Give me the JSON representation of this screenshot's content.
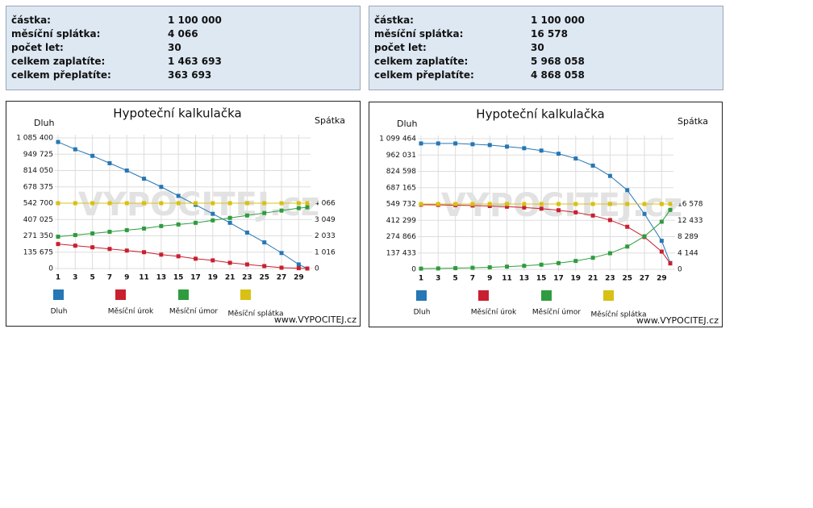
{
  "info": [
    {
      "rows": [
        [
          "částka:",
          "1 100 000"
        ],
        [
          "měsíční splátka:",
          "4 066"
        ],
        [
          "počet let:",
          "30"
        ],
        [
          "celkem zaplatíte:",
          "1 463 693"
        ],
        [
          "celkem přeplatíte:",
          "363 693"
        ]
      ]
    },
    {
      "rows": [
        [
          "částka:",
          "1 100 000"
        ],
        [
          "měsíční splátka:",
          "16 578"
        ],
        [
          "počet let:",
          "30"
        ],
        [
          "celkem zaplatíte:",
          "5 968 058"
        ],
        [
          "celkem přeplatíte:",
          "4 868 058"
        ]
      ]
    }
  ],
  "chart_data": [
    {
      "type": "line",
      "title": "Hypoteční kalkulačka",
      "y_label": "Dluh",
      "y2_label": "Spátka",
      "watermark": "VYPOCITEJ.cz",
      "source": "www.VYPOCITEJ.cz",
      "grid": true,
      "x": [
        1,
        3,
        5,
        7,
        9,
        11,
        13,
        15,
        17,
        19,
        21,
        23,
        25,
        27,
        29,
        30
      ],
      "xlim": [
        1,
        30
      ],
      "xticks": [
        1,
        3,
        5,
        7,
        9,
        11,
        13,
        15,
        17,
        19,
        21,
        23,
        25,
        27,
        29
      ],
      "ylim": [
        0,
        1085400
      ],
      "yticks": [
        0,
        {
          "value": 135675,
          "label": "135 675"
        },
        {
          "value": 271350,
          "label": "271 350"
        },
        {
          "value": 407025,
          "label": "407 025"
        },
        {
          "value": 542700,
          "label": "542 700"
        },
        {
          "value": 678375,
          "label": "678 375"
        },
        {
          "value": 814050,
          "label": "814 050"
        },
        {
          "value": 949725,
          "label": "949 725"
        },
        {
          "value": 1085400,
          "label": "1 085 400"
        }
      ],
      "y2lim": [
        0,
        8132
      ],
      "y2ticks": [
        0,
        {
          "value": 1016,
          "label": "1 016"
        },
        {
          "value": 2033,
          "label": "2 033"
        },
        {
          "value": 3049,
          "label": "3 049"
        },
        {
          "value": 4066,
          "label": "4 066"
        }
      ],
      "series": [
        {
          "name": "Dluh",
          "color": "#2677b4",
          "values": [
            1051500,
            990500,
            936200,
            875100,
            814100,
            746200,
            678400,
            603800,
            529200,
            454500,
            379900,
            298500,
            217100,
            128900,
            33900,
            0
          ]
        },
        {
          "name": "Měsíční úrok",
          "color": "#c8202f",
          "axis": "y2",
          "values": [
            1524,
            1423,
            1321,
            1219,
            1118,
            1016,
            864,
            762,
            610,
            508,
            356,
            254,
            152,
            51,
            20,
            0
          ]
        },
        {
          "name": "Měsíční úmor",
          "color": "#2e9c3e",
          "axis": "y2",
          "values": [
            1981,
            2083,
            2184,
            2286,
            2388,
            2489,
            2642,
            2743,
            2845,
            2997,
            3150,
            3302,
            3454,
            3607,
            3759,
            3810
          ]
        },
        {
          "name": "Měsíční splátka",
          "color": "#d8c015",
          "axis": "y2",
          "values": [
            4066,
            4066,
            4066,
            4066,
            4066,
            4066,
            4066,
            4066,
            4066,
            4066,
            4066,
            4066,
            4066,
            4066,
            4066,
            4066
          ]
        }
      ]
    },
    {
      "type": "line",
      "title": "Hypoteční kalkulačka",
      "y_label": "Dluh",
      "y2_label": "Spátka",
      "watermark": "VYPOCITEJ.cz",
      "source": "www.VYPOCITEJ.cz",
      "grid": true,
      "x": [
        1,
        3,
        5,
        7,
        9,
        11,
        13,
        15,
        17,
        19,
        21,
        23,
        25,
        27,
        29,
        30
      ],
      "xlim": [
        1,
        30
      ],
      "xticks": [
        1,
        3,
        5,
        7,
        9,
        11,
        13,
        15,
        17,
        19,
        21,
        23,
        25,
        27,
        29
      ],
      "ylim": [
        0,
        1099464
      ],
      "yticks": [
        0,
        {
          "value": 137433,
          "label": "137 433"
        },
        {
          "value": 274866,
          "label": "274 866"
        },
        {
          "value": 412299,
          "label": "412 299"
        },
        {
          "value": 549732,
          "label": "549 732"
        },
        {
          "value": 687165,
          "label": "687 165"
        },
        {
          "value": 824598,
          "label": "824 598"
        },
        {
          "value": 962031,
          "label": "962 031"
        },
        {
          "value": 1099464,
          "label": "1 099 464"
        }
      ],
      "y2lim": [
        0,
        33156
      ],
      "y2ticks": [
        0,
        {
          "value": 4144,
          "label": "4 144"
        },
        {
          "value": 8289,
          "label": "8 289"
        },
        {
          "value": 12433,
          "label": "12 433"
        },
        {
          "value": 16578,
          "label": "16 578"
        }
      ],
      "series": [
        {
          "name": "Dluh",
          "color": "#2677b4",
          "values": [
            1059400,
            1059400,
            1059400,
            1052800,
            1046100,
            1032800,
            1019400,
            999400,
            972800,
            932800,
            872900,
            786200,
            666300,
            466400,
            239900,
            53300
          ]
        },
        {
          "name": "Měsíční úrok",
          "color": "#c8202f",
          "axis": "y2",
          "values": [
            16400,
            16350,
            16280,
            16190,
            16070,
            15900,
            15690,
            15400,
            15000,
            14450,
            13650,
            12500,
            10800,
            8200,
            4500,
            1500
          ]
        },
        {
          "name": "Měsíční úmor",
          "color": "#2e9c3e",
          "axis": "y2",
          "values": [
            178,
            228,
            298,
            388,
            508,
            678,
            888,
            1178,
            1578,
            2128,
            2928,
            4078,
            5778,
            8378,
            12078,
            15078
          ]
        },
        {
          "name": "Měsíční splátka",
          "color": "#d8c015",
          "axis": "y2",
          "values": [
            16578,
            16578,
            16578,
            16578,
            16578,
            16578,
            16578,
            16578,
            16578,
            16578,
            16578,
            16578,
            16578,
            16578,
            16578,
            16578
          ]
        }
      ]
    }
  ]
}
